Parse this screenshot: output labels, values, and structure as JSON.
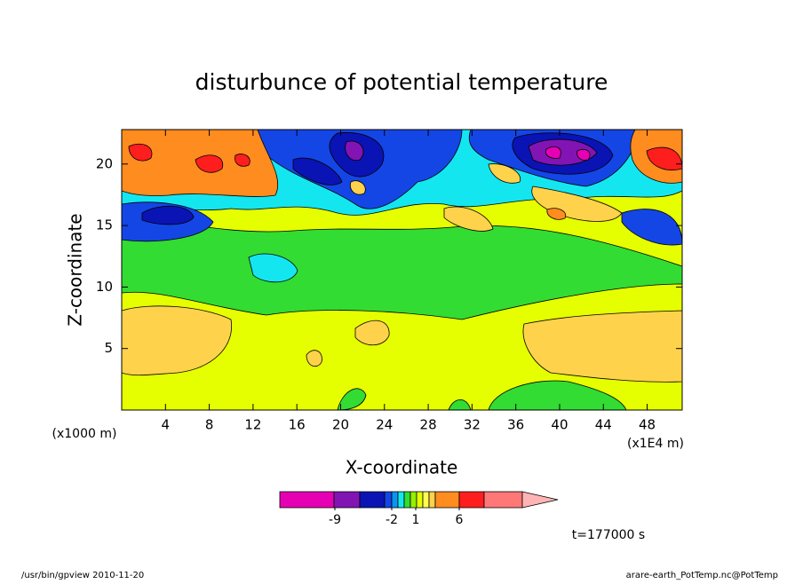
{
  "chart_data": {
    "type": "contour",
    "title": "disturbunce of potential temperature",
    "xlabel": "X-coordinate",
    "ylabel": "Z-coordinate",
    "x_unit_label": "(x1000 m)",
    "x_scale_label": "(x1E4 m)",
    "xlim": [
      0,
      51.2
    ],
    "xticks": [
      4,
      8,
      12,
      16,
      20,
      24,
      28,
      32,
      36,
      40,
      44,
      48
    ],
    "ylim": [
      0,
      22.8
    ],
    "yticks": [
      5,
      10,
      15,
      20
    ],
    "colorbar": {
      "colors": [
        "#e600b4",
        "#8214b4",
        "#0a14b4",
        "#1446e6",
        "#0a96f0",
        "#14e6f0",
        "#32dc32",
        "#96f000",
        "#e6ff00",
        "#ffff50",
        "#ffd24b",
        "#ff8c1e",
        "#ff1e1e",
        "#ff7878",
        "#ffb4b4"
      ],
      "ticks": [
        -9,
        -2,
        1,
        6
      ]
    },
    "time_label": "t=177000 s",
    "footer_left": "/usr/bin/gpview  2010-11-20",
    "footer_right": "arare-earth_PotTemp.nc@PotTemp"
  }
}
